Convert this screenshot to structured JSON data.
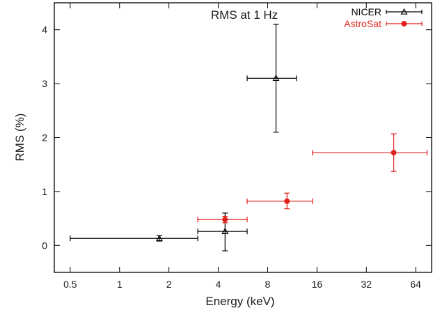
{
  "chart_data": {
    "type": "scatter",
    "title": "RMS at 1 Hz",
    "xlabel": "Energy (keV)",
    "ylabel": "RMS (%)",
    "x_scale": "log2",
    "xlim": [
      0.4,
      80
    ],
    "ylim": [
      -0.5,
      4.5
    ],
    "x_ticks": [
      0.5,
      1,
      2,
      4,
      8,
      16,
      32,
      64
    ],
    "x_tick_labels": [
      "0.5",
      "1",
      "2",
      "4",
      "8",
      "16",
      "32",
      "64"
    ],
    "y_ticks": [
      0,
      1,
      2,
      3,
      4
    ],
    "y_tick_labels": [
      "0",
      "1",
      "2",
      "3",
      "4"
    ],
    "legend_position": "top-right",
    "grid": false,
    "series": [
      {
        "name": "NICER",
        "color": "#000000",
        "marker": "triangle",
        "points": [
          {
            "x": 1.75,
            "y": 0.13,
            "x_lo": 0.5,
            "x_hi": 3.0,
            "y_lo": 0.08,
            "y_hi": 0.18
          },
          {
            "x": 4.4,
            "y": 0.26,
            "x_lo": 3.0,
            "x_hi": 6.0,
            "y_lo": -0.1,
            "y_hi": 0.6
          },
          {
            "x": 9.0,
            "y": 3.1,
            "x_lo": 6.0,
            "x_hi": 12.0,
            "y_lo": 2.1,
            "y_hi": 4.1
          }
        ]
      },
      {
        "name": "AstroSat",
        "color": "#e0201b",
        "marker": "circle",
        "points": [
          {
            "x": 4.4,
            "y": 0.48,
            "x_lo": 3.0,
            "x_hi": 6.0,
            "y_lo": 0.42,
            "y_hi": 0.54
          },
          {
            "x": 10.5,
            "y": 0.82,
            "x_lo": 6.0,
            "x_hi": 15.0,
            "y_lo": 0.68,
            "y_hi": 0.97
          },
          {
            "x": 47.0,
            "y": 1.72,
            "x_lo": 15.0,
            "x_hi": 75.0,
            "y_lo": 1.37,
            "y_hi": 2.07
          }
        ]
      }
    ]
  }
}
